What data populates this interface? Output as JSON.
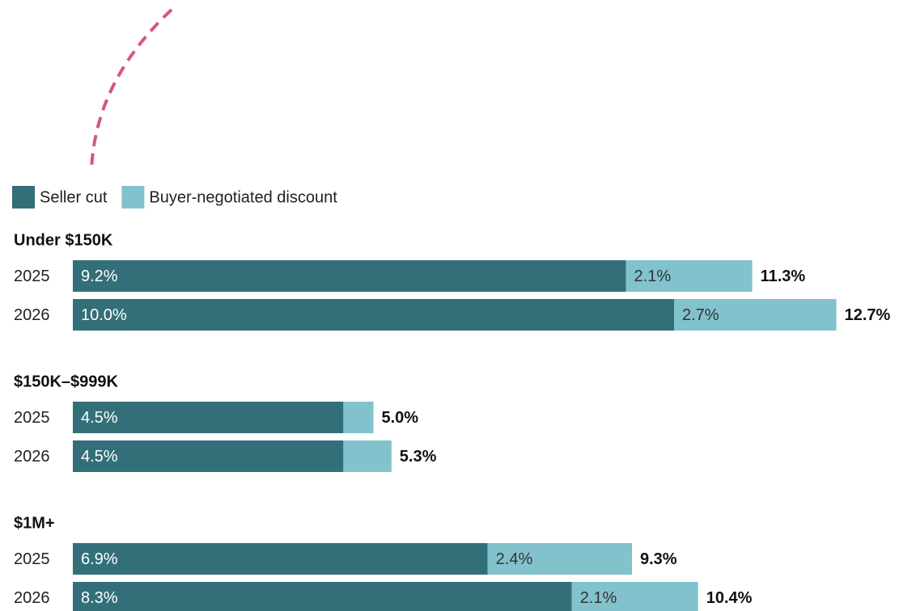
{
  "chart_data": [
    {
      "type": "stacked-bar-horizontal",
      "title": "Under $150K",
      "categories": [
        "2025",
        "2026"
      ],
      "series": [
        {
          "name": "Seller cut",
          "color": "#336f79",
          "values": [
            9.2,
            10.0
          ],
          "value_labels": [
            "9.2%",
            "10.0%"
          ]
        },
        {
          "name": "Buyer-negotiated discount",
          "color": "#82c2cc",
          "values": [
            2.1,
            2.7
          ],
          "value_labels": [
            "2.1%",
            "2.7%"
          ]
        }
      ],
      "totals": [
        11.3,
        12.7
      ],
      "total_labels": [
        "11.3%",
        "12.7%"
      ]
    },
    {
      "type": "stacked-bar-horizontal",
      "title": "$150K–$999K",
      "categories": [
        "2025",
        "2026"
      ],
      "series": [
        {
          "name": "Seller cut",
          "color": "#336f79",
          "values": [
            4.5,
            4.5
          ],
          "value_labels": [
            "4.5%",
            "4.5%"
          ]
        },
        {
          "name": "Buyer-negotiated discount",
          "color": "#82c2cc",
          "values": [
            0.5,
            0.8
          ],
          "value_labels": [
            null,
            null
          ]
        }
      ],
      "totals": [
        5.0,
        5.3
      ],
      "total_labels": [
        "5.0%",
        "5.3%"
      ]
    },
    {
      "type": "stacked-bar-horizontal",
      "title": "$1M+",
      "categories": [
        "2025",
        "2026"
      ],
      "series": [
        {
          "name": "Seller cut",
          "color": "#336f79",
          "values": [
            6.9,
            8.3
          ],
          "value_labels": [
            "6.9%",
            "8.3%"
          ]
        },
        {
          "name": "Buyer-negotiated discount",
          "color": "#82c2cc",
          "values": [
            2.4,
            2.1
          ],
          "value_labels": [
            "2.4%",
            "2.1%"
          ]
        }
      ],
      "totals": [
        9.3,
        10.4
      ],
      "total_labels": [
        "9.3%",
        "10.4%"
      ]
    }
  ]
}
